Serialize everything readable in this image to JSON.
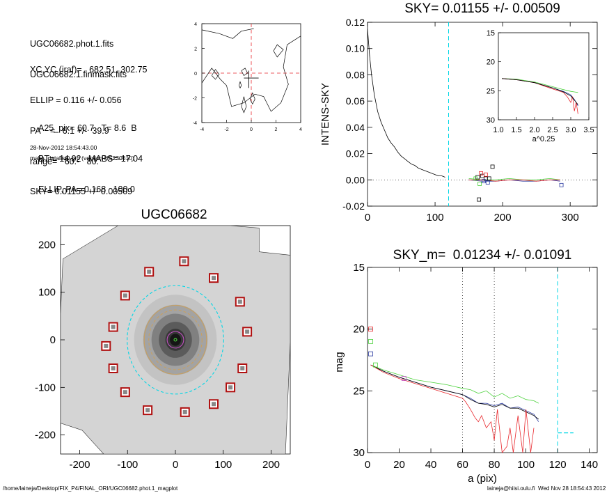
{
  "info_block": {
    "lines": [
      "UGC06682.phot.1.fits",
      "UGC06682.1.finmask.fits",
      "XC,YC (iraf)=   682.51, 302.75",
      "ELLIP = 0.116 +/- 0.056",
      "PA    =   6.1 +/-  39.9",
      "range=   60.-   80.",
      "SKY= 0.01155 +/- 0.00509",
      "A25_pix= 60.7   T= 8.6  B",
      "BT=  14.92   MABS=-17.04",
      "ELLIP, PA= 0.168   100.0"
    ],
    "timestamp": "28-Nov-2012 18:54:43.00",
    "program": "make_datalist0.pro (version HS230610)"
  },
  "footer": {
    "left": "/home/laineja/Desktop/FIX_P4/FINAL_ORI/UGC06682.phot.1_magplot",
    "right": "laineja@hiisi.oulu.fi  Wed Nov 28 18:54:43 2012"
  },
  "colors": {
    "sky_line": "#00d7e6",
    "mask_box": "#b01010",
    "red": "#e8262b",
    "green": "#4cd23c",
    "blue": "#2a3aa0",
    "grid_dot": "#888888"
  },
  "chart_data": [
    {
      "id": "contour",
      "type": "contour",
      "title": "",
      "xlim": [
        -4,
        4
      ],
      "ylim": [
        -4,
        4
      ],
      "xticks": [
        "-4",
        "-2",
        "0",
        "2",
        "4"
      ],
      "yticks": [
        "4",
        "2",
        "0",
        "-2",
        "-4"
      ],
      "contours": [
        [
          [
            -4,
            3.5
          ],
          [
            -2.6,
            3.2
          ],
          [
            -1.5,
            2.8
          ],
          [
            -0.8,
            3.4
          ],
          [
            0.2,
            3.6
          ]
        ],
        [
          [
            -4,
            -0.8
          ],
          [
            -3.2,
            0.4
          ],
          [
            -2.5,
            -0.5
          ],
          [
            -2.0,
            -1.0
          ],
          [
            -1.6,
            -2.7
          ],
          [
            -0.6,
            -2.4
          ],
          [
            0.3,
            -1.7
          ],
          [
            1.0,
            -1.9
          ],
          [
            1.6,
            -3.1
          ],
          [
            2.4,
            -2.4
          ],
          [
            3.0,
            -0.9
          ],
          [
            2.6,
            0.5
          ],
          [
            2.9,
            2.3
          ],
          [
            4,
            3.0
          ]
        ],
        [
          [
            1.8,
            1.8
          ],
          [
            2.1,
            2.3
          ],
          [
            2.6,
            1.9
          ],
          [
            2.1,
            1.3
          ],
          [
            1.8,
            1.8
          ]
        ],
        [
          [
            -3.2,
            -0.2
          ],
          [
            -2.9,
            0.3
          ],
          [
            -2.6,
            -0.1
          ],
          [
            -2.9,
            -0.5
          ],
          [
            -3.2,
            -0.2
          ]
        ],
        [
          [
            -0.8,
            -2.7
          ],
          [
            -0.6,
            -1.9
          ],
          [
            -0.4,
            -2.7
          ],
          [
            -0.6,
            -3.2
          ],
          [
            -0.8,
            -2.7
          ]
        ],
        [
          [
            -0.1,
            -2.1
          ],
          [
            0.1,
            -1.6
          ],
          [
            0.3,
            -2.1
          ],
          [
            0.1,
            -2.5
          ],
          [
            -0.1,
            -2.1
          ]
        ],
        [
          [
            -0.8,
            0.2
          ],
          [
            -0.5,
            0.4
          ],
          [
            -0.3,
            0.0
          ],
          [
            -0.6,
            -0.2
          ],
          [
            -0.8,
            0.2
          ]
        ],
        [
          [
            -1.0,
            -1.0
          ],
          [
            -0.9,
            -0.7
          ],
          [
            -0.8,
            -1.0
          ],
          [
            -0.9,
            -1.2
          ],
          [
            -1.0,
            -1.0
          ]
        ]
      ]
    },
    {
      "id": "intens_sky",
      "type": "line",
      "title": "SKY= 0.01155 +/- 0.00509",
      "xlabel": "",
      "ylabel": "INTENS-SKY",
      "xlim": [
        0,
        340
      ],
      "ylim": [
        -0.02,
        0.12
      ],
      "xticks": [
        0,
        100,
        200,
        300
      ],
      "yticks": [
        0.12,
        0.1,
        0.08,
        0.06,
        0.04,
        0.02,
        0.0,
        -0.02
      ],
      "ytick_labels": [
        "0.12",
        "0.10",
        "0.08",
        "0.06",
        "0.04",
        "0.02",
        "0.00",
        "-0.02"
      ],
      "sky_line_x": 120,
      "series": [
        {
          "color": "black",
          "x": [
            0,
            3,
            6,
            10,
            15,
            20,
            25,
            30,
            35,
            40,
            45,
            50,
            55,
            60,
            65,
            70,
            75,
            80,
            85,
            90,
            95,
            100,
            105,
            110,
            115
          ],
          "y": [
            0.115,
            0.095,
            0.08,
            0.065,
            0.052,
            0.044,
            0.038,
            0.032,
            0.028,
            0.025,
            0.021,
            0.018,
            0.016,
            0.014,
            0.012,
            0.011,
            0.009,
            0.008,
            0.007,
            0.006,
            0.005,
            0.004,
            0.003,
            0.003,
            0.002
          ]
        },
        {
          "color": "#2a3aa0",
          "x": [
            150,
            170,
            190,
            210,
            230,
            250,
            270,
            285
          ],
          "y": [
            0.0,
            -0.001,
            -0.001,
            0.0,
            -0.001,
            -0.001,
            0.0,
            -0.001
          ]
        },
        {
          "color": "#4cd23c",
          "x": [
            150,
            170,
            190,
            210,
            230,
            250,
            270,
            285
          ],
          "y": [
            0.001,
            0.0,
            0.0,
            0.001,
            0.0,
            0.0,
            0.001,
            0.0
          ]
        },
        {
          "color": "#e8262b",
          "x": [
            150,
            170,
            190,
            210,
            230,
            250,
            270,
            285
          ],
          "y": [
            0.0,
            0.0,
            -0.001,
            0.0,
            0.0,
            -0.001,
            0.0,
            0.0
          ]
        }
      ],
      "markers": [
        {
          "x": 163,
          "y": 0.002,
          "color": "black"
        },
        {
          "x": 165,
          "y": -0.015,
          "color": "black"
        },
        {
          "x": 170,
          "y": 0.003,
          "color": "black"
        },
        {
          "x": 175,
          "y": 0.001,
          "color": "black"
        },
        {
          "x": 180,
          "y": 0.001,
          "color": "black"
        },
        {
          "x": 185,
          "y": 0.01,
          "color": "black"
        },
        {
          "x": 168,
          "y": 0.005,
          "color": "#e8262b"
        },
        {
          "x": 175,
          "y": 0.004,
          "color": "#e8262b"
        },
        {
          "x": 160,
          "y": 0.001,
          "color": "#4cd23c"
        },
        {
          "x": 166,
          "y": -0.003,
          "color": "#4cd23c"
        },
        {
          "x": 172,
          "y": -0.001,
          "color": "#2a3aa0"
        },
        {
          "x": 178,
          "y": -0.002,
          "color": "#2a3aa0"
        },
        {
          "x": 287,
          "y": -0.004,
          "color": "#2a3aa0"
        }
      ]
    },
    {
      "id": "inset",
      "type": "line",
      "title": "",
      "xlabel": "a^0.25",
      "ylabel": "",
      "xlim": [
        1.0,
        3.5
      ],
      "ylim": [
        15,
        30
      ],
      "y_inverted": true,
      "xticks": [
        1.0,
        1.5,
        2.0,
        2.5,
        3.0,
        3.5
      ],
      "xtick_labels": [
        "1.0",
        "1.5",
        "2.0",
        "2.5",
        "3.0",
        "3.5"
      ],
      "yticks": [
        15,
        20,
        25,
        30
      ],
      "series": [
        {
          "color": "#4cd23c",
          "x": [
            1.1,
            1.5,
            2.0,
            2.5,
            2.8,
            3.0,
            3.1,
            3.2
          ],
          "y": [
            22.9,
            23.0,
            23.5,
            24.3,
            24.8,
            25.1,
            25.2,
            25.3
          ]
        },
        {
          "color": "#2a3aa0",
          "x": [
            1.1,
            1.5,
            2.0,
            2.5,
            2.8,
            3.0,
            3.1,
            3.2
          ],
          "y": [
            22.9,
            23.1,
            23.6,
            24.5,
            25.1,
            25.7,
            26.5,
            27.6
          ]
        },
        {
          "color": "#e8262b",
          "x": [
            1.1,
            1.5,
            2.0,
            2.5,
            2.8,
            2.9,
            3.0,
            3.05,
            3.1,
            3.15,
            3.2
          ],
          "y": [
            22.9,
            23.1,
            23.6,
            24.7,
            25.3,
            26.0,
            27.0,
            26.0,
            28.5,
            27.0,
            29.0
          ]
        },
        {
          "color": "black",
          "x": [
            1.1,
            1.5,
            2.0,
            2.5,
            2.8,
            3.0,
            3.1,
            3.2
          ],
          "y": [
            22.9,
            23.1,
            23.6,
            24.5,
            25.2,
            25.9,
            26.6,
            27.4
          ]
        }
      ]
    },
    {
      "id": "galaxy_image",
      "type": "image",
      "title": "UGC06682",
      "xlim": [
        -240,
        240
      ],
      "ylim": [
        -240,
        240
      ],
      "xticks": [
        "-200",
        "-100",
        "0",
        "100",
        "200"
      ],
      "yticks": [
        "200",
        "100",
        "0",
        "-100",
        "-200"
      ],
      "mask_boxes": [
        [
          18,
          165
        ],
        [
          -55,
          143
        ],
        [
          80,
          130
        ],
        [
          -105,
          93
        ],
        [
          135,
          80
        ],
        [
          -130,
          27
        ],
        [
          150,
          17
        ],
        [
          -145,
          -13
        ],
        [
          -130,
          -60
        ],
        [
          140,
          -60
        ],
        [
          -105,
          -110
        ],
        [
          115,
          -100
        ],
        [
          -58,
          -148
        ],
        [
          80,
          -135
        ],
        [
          20,
          -152
        ]
      ],
      "ellipses": [
        {
          "color": "#00d7e6",
          "rx": 105,
          "ry": 118,
          "dashed": true
        },
        {
          "color": "#c8a060",
          "rx": 68,
          "ry": 75,
          "dashed": false
        },
        {
          "color": "#c8a060",
          "rx": 58,
          "ry": 65,
          "dashed": true
        },
        {
          "color": "#c050c0",
          "rx": 18,
          "ry": 18,
          "dashed": false
        },
        {
          "color": "#4cd23c",
          "rx": 3,
          "ry": 3,
          "dashed": false
        }
      ]
    },
    {
      "id": "mag_profile",
      "type": "line",
      "title": "SKY_m=  0.01234 +/- 0.01091",
      "xlabel": "a (pix)",
      "ylabel": "mag",
      "xlim": [
        0,
        145
      ],
      "ylim": [
        15,
        30
      ],
      "y_inverted": true,
      "xticks": [
        0,
        20,
        40,
        60,
        80,
        100,
        120,
        140
      ],
      "yticks": [
        15,
        20,
        25,
        30
      ],
      "vlines_dotted": [
        60,
        80
      ],
      "sky_line_x": 120,
      "sky_segment": {
        "x": [
          120,
          130
        ],
        "y": 28.4
      },
      "markers": [
        {
          "x": 2,
          "y": 20.0,
          "color": "#e8262b"
        },
        {
          "x": 2,
          "y": 21.0,
          "color": "#4cd23c"
        },
        {
          "x": 2,
          "y": 22.0,
          "color": "#2a3aa0"
        },
        {
          "x": 5,
          "y": 22.9,
          "color": "#4cd23c"
        },
        {
          "x": 23,
          "y": 24.0,
          "color": "#c050c0"
        }
      ],
      "series": [
        {
          "color": "#4cd23c",
          "x": [
            2,
            10,
            20,
            30,
            40,
            50,
            60,
            65,
            70,
            75,
            80,
            85,
            90,
            95,
            100,
            105,
            108
          ],
          "y": [
            22.9,
            23.3,
            23.7,
            24.1,
            24.3,
            24.5,
            24.8,
            24.9,
            25.2,
            25.0,
            25.5,
            25.2,
            25.6,
            25.4,
            25.7,
            25.8,
            26.0
          ]
        },
        {
          "color": "#2a3aa0",
          "x": [
            2,
            10,
            20,
            30,
            40,
            50,
            60,
            65,
            70,
            75,
            80,
            85,
            90,
            95,
            100,
            105,
            108
          ],
          "y": [
            22.9,
            23.4,
            23.9,
            24.3,
            24.7,
            25.0,
            25.3,
            25.6,
            26.0,
            26.0,
            26.2,
            26.0,
            26.4,
            26.3,
            26.6,
            26.9,
            27.5
          ]
        },
        {
          "color": "black",
          "x": [
            2,
            10,
            20,
            30,
            40,
            50,
            60,
            65,
            70,
            75,
            80,
            85,
            90,
            95,
            100,
            105,
            108
          ],
          "y": [
            22.9,
            23.4,
            23.9,
            24.3,
            24.7,
            25.0,
            25.3,
            25.7,
            26.0,
            26.1,
            26.3,
            26.1,
            26.4,
            26.4,
            26.7,
            27.0,
            27.3
          ]
        },
        {
          "color": "#e8262b",
          "x": [
            2,
            10,
            20,
            30,
            40,
            50,
            60,
            62,
            65,
            68,
            70,
            72,
            75,
            78,
            80,
            82,
            85,
            88,
            90,
            92,
            95,
            98,
            100,
            103,
            105
          ],
          "y": [
            22.9,
            23.5,
            24.0,
            24.4,
            24.8,
            25.2,
            25.6,
            25.9,
            26.5,
            27.2,
            27.5,
            27.0,
            28.0,
            27.5,
            29.0,
            26.5,
            30.0,
            29.5,
            28.0,
            30.0,
            27.0,
            30.0,
            26.5,
            30.0,
            28.0
          ]
        }
      ]
    }
  ]
}
